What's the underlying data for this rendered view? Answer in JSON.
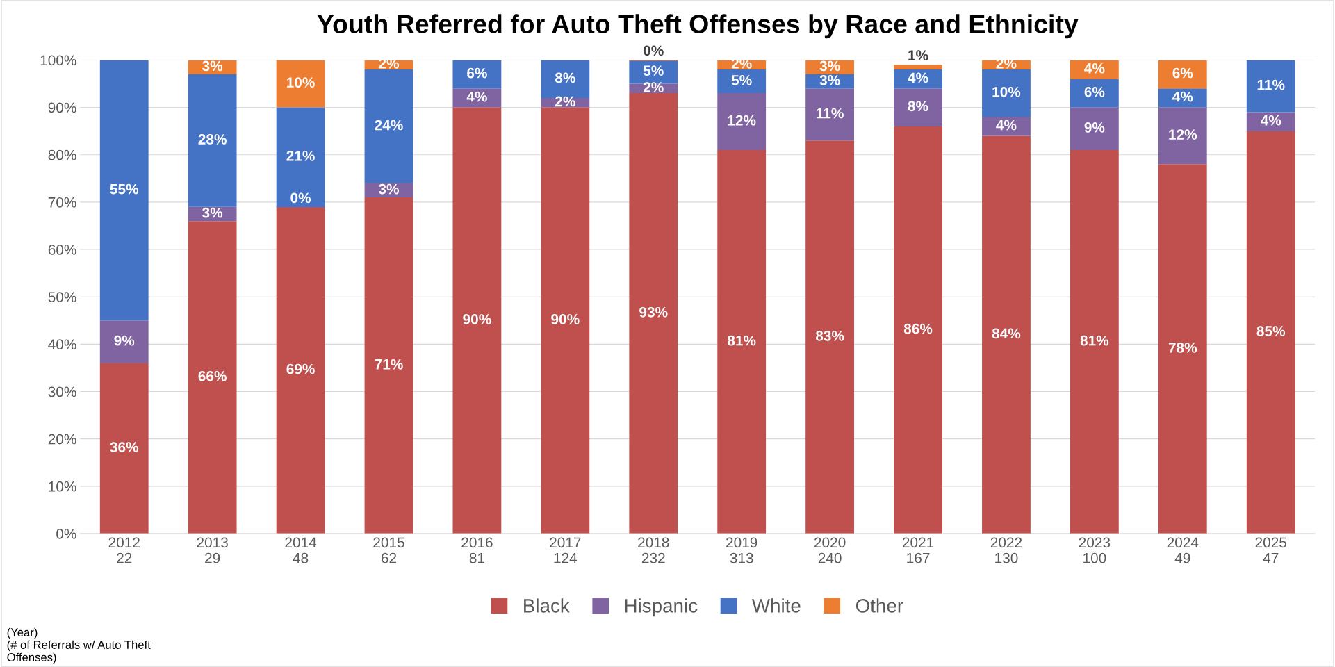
{
  "chart_data": {
    "type": "bar",
    "stacked": true,
    "title": "Youth Referred for Auto Theft Offenses by Race and Ethnicity",
    "categories": [
      "2012\n22",
      "2013\n29",
      "2014\n48",
      "2015\n62",
      "2016\n81",
      "2017\n124",
      "2018\n232",
      "2019\n313",
      "2020\n240",
      "2021\n167",
      "2022\n130",
      "2023\n100",
      "2024\n49",
      "2025\n47"
    ],
    "series": [
      {
        "name": "Black",
        "color": "#c0504d",
        "values": [
          36,
          66,
          69,
          71,
          90,
          90,
          93,
          81,
          83,
          86,
          84,
          81,
          78,
          85
        ],
        "value_labels": [
          "36%",
          "66%",
          "69%",
          "71%",
          "90%",
          "90%",
          "93%",
          "81%",
          "83%",
          "86%",
          "84%",
          "81%",
          "78%",
          "85%"
        ]
      },
      {
        "name": "Hispanic",
        "color": "#8064a2",
        "values": [
          9,
          3,
          0,
          3,
          4,
          2,
          2,
          12,
          11,
          8,
          4,
          9,
          12,
          4
        ],
        "value_labels": [
          "9%",
          "3%",
          "0%",
          "3%",
          "4%",
          "2%",
          "2%",
          "12%",
          "11%",
          "8%",
          "4%",
          "9%",
          "12%",
          "4%"
        ]
      },
      {
        "name": "White",
        "color": "#4472c4",
        "values": [
          55,
          28,
          21,
          24,
          6,
          8,
          5,
          5,
          3,
          4,
          10,
          6,
          4,
          11
        ],
        "value_labels": [
          "55%",
          "28%",
          "21%",
          "24%",
          "6%",
          "8%",
          "5%",
          "5%",
          "3%",
          "4%",
          "10%",
          "6%",
          "4%",
          "11%"
        ]
      },
      {
        "name": "Other",
        "color": "#ed7d31",
        "values": [
          null,
          3,
          10,
          2,
          null,
          null,
          0,
          2,
          3,
          1,
          2,
          4,
          6,
          null
        ],
        "value_labels": [
          null,
          "3%",
          "10%",
          "2%",
          null,
          null,
          "0%",
          "2%",
          "3%",
          "1%",
          "2%",
          "4%",
          "6%",
          null
        ]
      }
    ],
    "ylim": [
      0,
      100
    ],
    "yticks": [
      {
        "value": 0,
        "label": "0%"
      },
      {
        "value": 10,
        "label": "10%"
      },
      {
        "value": 20,
        "label": "20%"
      },
      {
        "value": 30,
        "label": "30%"
      },
      {
        "value": 40,
        "label": "40%"
      },
      {
        "value": 50,
        "label": "50%"
      },
      {
        "value": 60,
        "label": "60%"
      },
      {
        "value": 70,
        "label": "70%"
      },
      {
        "value": 80,
        "label": "80%"
      },
      {
        "value": 90,
        "label": "90%"
      },
      {
        "value": 100,
        "label": "100%"
      }
    ],
    "grid": "y",
    "legend": "bottom",
    "annotations": [
      "(Year)\n(# of Referrals w/ Auto Theft\nOffenses)"
    ]
  }
}
